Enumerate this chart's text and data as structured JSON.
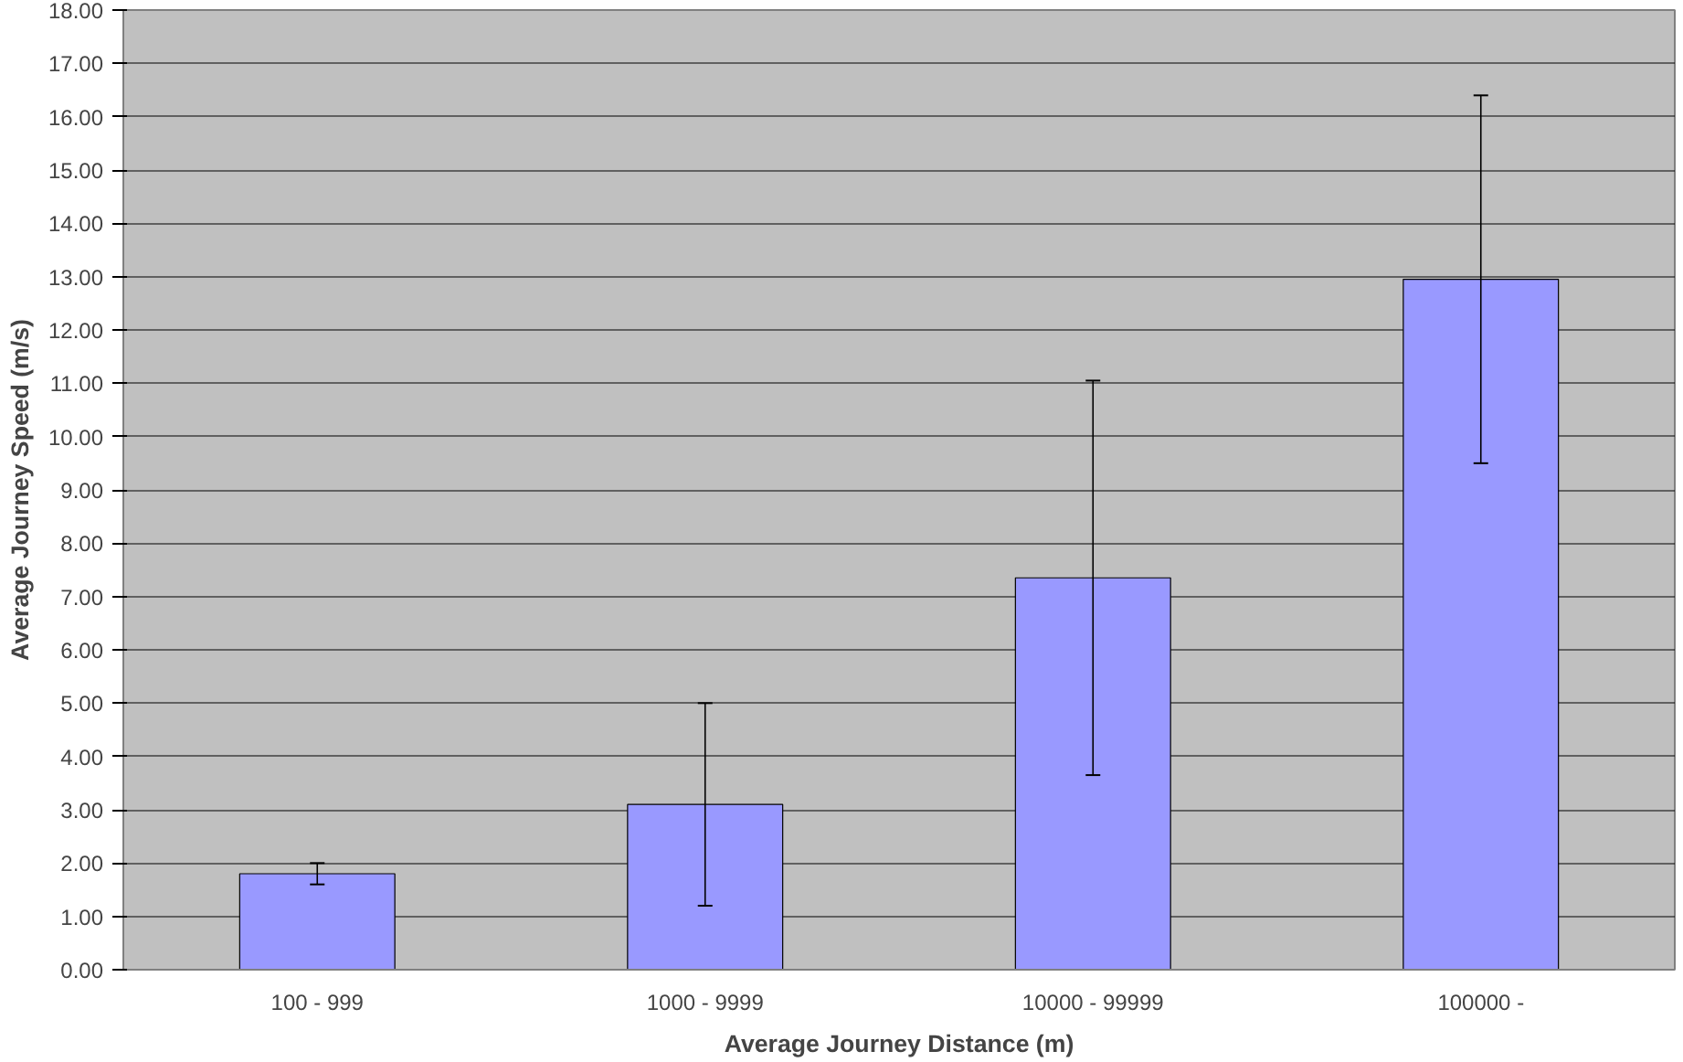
{
  "chart_data": {
    "type": "bar",
    "xlabel": "Average Journey Distance (m)",
    "ylabel": "Average Journey Speed (m/s)",
    "categories": [
      "100 - 999",
      "1000 - 9999",
      "10000 - 99999",
      "100000 -"
    ],
    "values": [
      1.8,
      3.1,
      7.35,
      12.95
    ],
    "errors": [
      0.2,
      1.9,
      3.7,
      3.45
    ],
    "color": "#9999ff",
    "grid": "y",
    "ylim": [
      0,
      18
    ],
    "yticks": [
      {
        "value": 0,
        "label": "0.00"
      },
      {
        "value": 1,
        "label": "1.00"
      },
      {
        "value": 2,
        "label": "2.00"
      },
      {
        "value": 3,
        "label": "3.00"
      },
      {
        "value": 4,
        "label": "4.00"
      },
      {
        "value": 5,
        "label": "5.00"
      },
      {
        "value": 6,
        "label": "6.00"
      },
      {
        "value": 7,
        "label": "7.00"
      },
      {
        "value": 8,
        "label": "8.00"
      },
      {
        "value": 9,
        "label": "9.00"
      },
      {
        "value": 10,
        "label": "10.00"
      },
      {
        "value": 11,
        "label": "11.00"
      },
      {
        "value": 12,
        "label": "12.00"
      },
      {
        "value": 13,
        "label": "13.00"
      },
      {
        "value": 14,
        "label": "14.00"
      },
      {
        "value": 15,
        "label": "15.00"
      },
      {
        "value": 16,
        "label": "16.00"
      },
      {
        "value": 17,
        "label": "17.00"
      },
      {
        "value": 18,
        "label": "18.00"
      }
    ]
  }
}
